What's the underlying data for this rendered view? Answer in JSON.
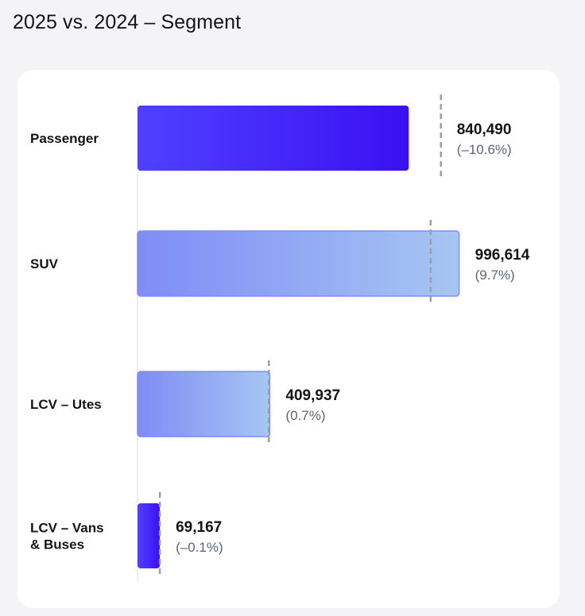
{
  "page": {
    "title": "2025 vs. 2024 – Segment"
  },
  "colors": {
    "dark_start": "#4f41ff",
    "dark_end": "#3a10f2",
    "light_start": "#7f8cf6",
    "light_end": "#a6c6f2",
    "reference_line": "#9aa0ab",
    "axis": "#dcdcea"
  },
  "chart_data": {
    "type": "bar",
    "orientation": "horizontal",
    "title": "2025 vs. 2024 – Segment",
    "categories": [
      "Passenger",
      "SUV",
      "LCV – Utes",
      "LCV – Vans & Buses"
    ],
    "category_lines": [
      [
        "Passenger"
      ],
      [
        "SUV"
      ],
      [
        "LCV – Utes"
      ],
      [
        "LCV – Vans",
        "& Buses"
      ]
    ],
    "series": [
      {
        "name": "2025",
        "values": [
          840490,
          996614,
          409937,
          69167
        ]
      },
      {
        "name": "2024",
        "values": [
          940200,
          908500,
          407100,
          69240
        ]
      }
    ],
    "value_labels": [
      "840,490",
      "996,614",
      "409,937",
      "69,167"
    ],
    "change_labels": [
      "(–10.6%)",
      "(9.7%)",
      "(0.7%)",
      "(–0.1%)"
    ],
    "bar_styles": [
      "dark",
      "light",
      "light",
      "dark"
    ],
    "reference_style": "dashed vertical line marking 2024 value",
    "xlim": [
      0,
      1000000
    ]
  }
}
